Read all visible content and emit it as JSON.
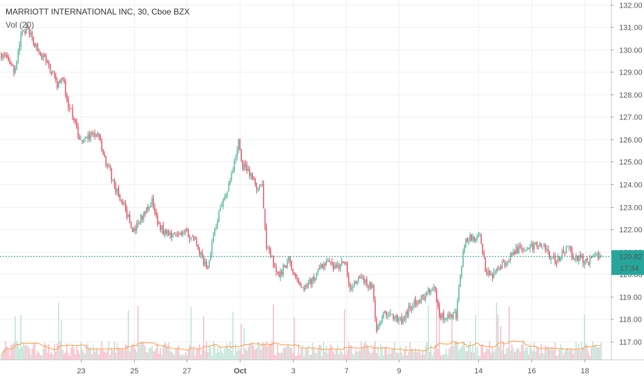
{
  "legend": {
    "symbol": "MARRIOTT INTERNATIONAL INC, 30, Cboe BZX",
    "volume": "Vol (20)"
  },
  "price_badge": {
    "price": "120.82",
    "countdown": "17:34"
  },
  "colors": {
    "up": "#4ab29a",
    "down": "#e0485a",
    "vol_up": "#b8e0d2",
    "vol_down": "#f7b6c2",
    "vol_ma": "#ff9a3c",
    "price_line": "#26a69a",
    "grid": "#eef0f3",
    "badge": "#26a69a"
  },
  "chart_data": {
    "type": "candlestick",
    "title": "MARRIOTT INTERNATIONAL INC, 30, Cboe BZX",
    "interval": "30",
    "exchange": "Cboe BZX",
    "last_price": 120.82,
    "y_axis": {
      "position": "right",
      "range": [
        116.2,
        132.2
      ],
      "ticks": [
        117,
        118,
        119,
        120,
        121,
        122,
        123,
        124,
        125,
        126,
        127,
        128,
        129,
        130,
        131,
        132
      ],
      "tick_labels": [
        "117.00",
        "118.00",
        "119.00",
        "120.00",
        "121.00",
        "122.00",
        "123.00",
        "124.00",
        "125.00",
        "126.00",
        "127.00",
        "128.00",
        "129.00",
        "130.00",
        "131.00",
        "132.00"
      ]
    },
    "x_axis": {
      "range": [
        0,
        430
      ],
      "ticks": [
        {
          "bar": 57,
          "label": "23"
        },
        {
          "bar": 95,
          "label": "25"
        },
        {
          "bar": 133,
          "label": "27"
        },
        {
          "bar": 171,
          "label": "Oct"
        },
        {
          "bar": 209,
          "label": "3"
        },
        {
          "bar": 247,
          "label": "7"
        },
        {
          "bar": 285,
          "label": "9"
        },
        {
          "bar": 342,
          "label": "14"
        },
        {
          "bar": 380,
          "label": "16"
        },
        {
          "bar": 418,
          "label": "18"
        }
      ]
    },
    "grid": true,
    "volume_ma_period": 20,
    "price_path": [
      [
        0,
        129.8
      ],
      [
        5,
        129.4
      ],
      [
        10,
        129.0
      ],
      [
        14,
        130.6
      ],
      [
        18,
        130.9
      ],
      [
        22,
        130.5
      ],
      [
        28,
        129.8
      ],
      [
        34,
        129.3
      ],
      [
        40,
        128.4
      ],
      [
        44,
        128.7
      ],
      [
        48,
        127.4
      ],
      [
        52,
        127.0
      ],
      [
        55,
        126.2
      ],
      [
        58,
        125.8
      ],
      [
        62,
        126.1
      ],
      [
        66,
        126.3
      ],
      [
        70,
        126.1
      ],
      [
        73,
        125.2
      ],
      [
        77,
        124.8
      ],
      [
        81,
        123.9
      ],
      [
        85,
        123.4
      ],
      [
        88,
        123.0
      ],
      [
        91,
        122.5
      ],
      [
        94,
        121.8
      ],
      [
        97,
        122.1
      ],
      [
        100,
        122.5
      ],
      [
        104,
        122.8
      ],
      [
        108,
        123.2
      ],
      [
        112,
        122.3
      ],
      [
        116,
        121.9
      ],
      [
        122,
        121.8
      ],
      [
        128,
        121.9
      ],
      [
        134,
        121.8
      ],
      [
        140,
        121.3
      ],
      [
        145,
        120.5
      ],
      [
        148,
        120.3
      ],
      [
        151,
        121.4
      ],
      [
        155,
        122.5
      ],
      [
        158,
        123.2
      ],
      [
        162,
        123.8
      ],
      [
        166,
        124.6
      ],
      [
        170,
        125.9
      ],
      [
        173,
        124.8
      ],
      [
        177,
        124.6
      ],
      [
        181,
        124.1
      ],
      [
        184,
        123.8
      ],
      [
        187,
        123.9
      ],
      [
        190,
        121.3
      ],
      [
        193,
        120.8
      ],
      [
        196,
        120.4
      ],
      [
        199,
        119.8
      ],
      [
        202,
        120.3
      ],
      [
        206,
        120.6
      ],
      [
        210,
        120.0
      ],
      [
        213,
        119.6
      ],
      [
        217,
        119.4
      ],
      [
        220,
        119.6
      ],
      [
        224,
        119.8
      ],
      [
        228,
        120.2
      ],
      [
        232,
        120.5
      ],
      [
        236,
        120.4
      ],
      [
        240,
        120.3
      ],
      [
        244,
        120.5
      ],
      [
        247,
        120.3
      ],
      [
        250,
        119.5
      ],
      [
        254,
        119.7
      ],
      [
        258,
        119.8
      ],
      [
        262,
        119.6
      ],
      [
        266,
        119.4
      ],
      [
        269,
        117.6
      ],
      [
        272,
        118.0
      ],
      [
        276,
        118.3
      ],
      [
        280,
        118.2
      ],
      [
        284,
        118.0
      ],
      [
        288,
        117.9
      ],
      [
        292,
        118.5
      ],
      [
        296,
        118.7
      ],
      [
        300,
        118.9
      ],
      [
        304,
        119.0
      ],
      [
        308,
        119.4
      ],
      [
        311,
        119.2
      ],
      [
        314,
        118.2
      ],
      [
        318,
        118.1
      ],
      [
        322,
        118.2
      ],
      [
        326,
        118.2
      ],
      [
        329,
        119.9
      ],
      [
        332,
        121.4
      ],
      [
        336,
        121.7
      ],
      [
        340,
        121.5
      ],
      [
        343,
        121.8
      ],
      [
        347,
        120.2
      ],
      [
        350,
        119.9
      ],
      [
        354,
        120.0
      ],
      [
        358,
        120.4
      ],
      [
        362,
        120.5
      ],
      [
        366,
        120.9
      ],
      [
        370,
        121.1
      ],
      [
        374,
        121.2
      ],
      [
        378,
        121.1
      ],
      [
        382,
        121.3
      ],
      [
        386,
        121.4
      ],
      [
        390,
        121.2
      ],
      [
        394,
        120.7
      ],
      [
        398,
        120.6
      ],
      [
        402,
        121.0
      ],
      [
        406,
        121.2
      ],
      [
        410,
        120.8
      ],
      [
        414,
        120.7
      ],
      [
        418,
        120.6
      ],
      [
        421,
        120.5
      ],
      [
        424,
        120.7
      ],
      [
        427,
        120.8
      ],
      [
        430,
        120.82
      ]
    ]
  }
}
